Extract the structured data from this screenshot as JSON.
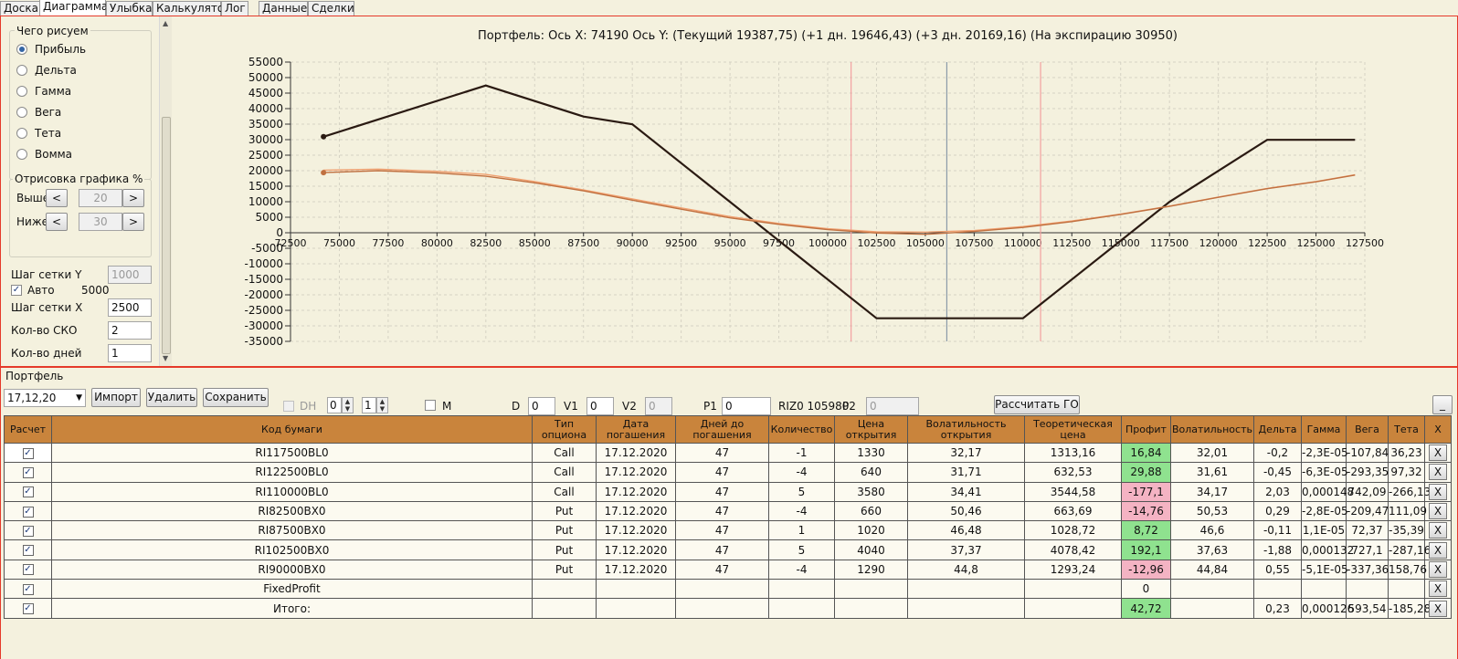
{
  "tabs": [
    "Доска",
    "Диаграмма",
    "Улыбка",
    "Калькулятор",
    "Лог",
    "Данные",
    "Сделки"
  ],
  "active_tab": "Диаграмма",
  "left": {
    "draw_group": "Чего рисуем",
    "radios": [
      "Прибыль",
      "Дельта",
      "Гамма",
      "Вега",
      "Тета",
      "Вомма"
    ],
    "selected_radio": "Прибыль",
    "render_group": "Отрисовка графика %",
    "above_label": "Выше",
    "above_value": "20",
    "below_label": "Ниже",
    "below_value": "30",
    "prev_glyph": "<",
    "next_glyph": ">",
    "grid_y_label": "Шаг сетки Y",
    "grid_y_value": "1000",
    "auto_label": "Авто",
    "auto_checked": true,
    "auto_value": "5000",
    "grid_x_label": "Шаг сетки X",
    "grid_x_value": "2500",
    "sko_label": "Кол-во СКО",
    "sko_value": "2",
    "days_label": "Кол-во дней",
    "days_value": "1"
  },
  "chart_data": {
    "type": "line",
    "title": "Портфель: Ось X: 74190 Ось Y:  (Текущий 19387,75)  (+1 дн. 19646,43)  (+3 дн. 20169,16)  (На экспирацию 30950)",
    "xlim": [
      72500,
      127500
    ],
    "ylim": [
      -35000,
      55000
    ],
    "x_ticks": [
      72500,
      75000,
      77500,
      80000,
      82500,
      85000,
      87500,
      90000,
      92500,
      95000,
      97500,
      100000,
      102500,
      105000,
      107500,
      110000,
      112500,
      115000,
      117500,
      120000,
      122500,
      125000,
      127500
    ],
    "y_ticks": [
      55000,
      50000,
      45000,
      40000,
      35000,
      30000,
      25000,
      20000,
      15000,
      10000,
      5000,
      0,
      -5000,
      -10000,
      -15000,
      -20000,
      -25000,
      -30000,
      -35000
    ],
    "grid": true,
    "vertical_markers": [
      {
        "x": 101200,
        "color": "#f3a0a0"
      },
      {
        "x": 106100,
        "color": "#8a9aa8"
      },
      {
        "x": 110900,
        "color": "#f3a0a0"
      }
    ],
    "series": [
      {
        "color": "#2a1a12",
        "x": [
          74190,
          82500,
          87500,
          90000,
          102500,
          110000,
          117500,
          122500,
          127000
        ],
        "y": [
          30950,
          47450,
          37450,
          34950,
          -27550,
          -27550,
          9950,
          29950,
          29950
        ]
      },
      {
        "color": "#f0a070",
        "x": [
          74190,
          77000,
          80000,
          82500,
          85000,
          87500,
          90000,
          92500,
          95000,
          97500,
          100000,
          102500,
          105000,
          107500,
          110000,
          112500,
          115000,
          117500,
          120000,
          122500,
          125000,
          127000
        ],
        "y": [
          20169,
          20500,
          19800,
          18800,
          16500,
          13800,
          10900,
          8000,
          5200,
          3000,
          1300,
          300,
          200,
          700,
          2000,
          3800,
          6000,
          8600,
          11500,
          14300,
          16500,
          18700
        ]
      },
      {
        "color": "#c07040",
        "x": [
          74190,
          77000,
          80000,
          82500,
          85000,
          87500,
          90000,
          92500,
          95000,
          97500,
          100000,
          102500,
          105000,
          107500,
          110000,
          112500,
          115000,
          117500,
          120000,
          122500,
          125000,
          127000
        ],
        "y": [
          19388,
          20000,
          19300,
          18200,
          16100,
          13500,
          10500,
          7600,
          4800,
          2700,
          1000,
          -100,
          -500,
          400,
          1700,
          3600,
          5900,
          8500,
          11400,
          14200,
          16400,
          18600
        ]
      }
    ],
    "highlight_points": [
      {
        "x": 74190,
        "y": 30950,
        "color": "#2a1a12"
      },
      {
        "x": 74190,
        "y": 19388,
        "color": "#c07040"
      }
    ]
  },
  "portfolio": {
    "title": "Портфель",
    "select_value": "17,12,20",
    "import_btn": "Импорт",
    "delete_btn": "Удалить",
    "save_btn": "Сохранить",
    "dh_label": "DH",
    "spin1_value": "0",
    "spin2_value": "1",
    "m_label": "M",
    "d_label": "D",
    "d_value": "0",
    "v1_label": "V1",
    "v1_value": "0",
    "v2_label": "V2",
    "v2_value": "0",
    "p1_label": "P1",
    "p1_value": "0",
    "riz_label": "RIZ0 105980",
    "p2_label": "P2",
    "p2_value": "0",
    "calc_btn": "Рассчитать ГО",
    "min_btn": "_"
  },
  "table": {
    "headers": [
      "Расчет",
      "Код бумаги",
      "Тип опциона",
      "Дата погашения",
      "Дней до погашения",
      "Количество",
      "Цена открытия",
      "Волатильность открытия",
      "Теоретическая цена",
      "Профит",
      "Волатильность",
      "Дельта",
      "Гамма",
      "Вега",
      "Тета",
      "X"
    ],
    "rows": [
      {
        "code": "RI117500BL0",
        "type": "Call",
        "date": "17.12.2020",
        "days": "47",
        "qty": "-1",
        "price": "1330",
        "vol_open": "32,17",
        "theo": "1313,16",
        "profit": "16,84",
        "profit_color": "green",
        "vol": "32,01",
        "delta": "-0,2",
        "gamma": "-2,3E-05",
        "vega": "-107,84",
        "theta": "36,23",
        "x": "X"
      },
      {
        "code": "RI122500BL0",
        "type": "Call",
        "date": "17.12.2020",
        "days": "47",
        "qty": "-4",
        "price": "640",
        "vol_open": "31,71",
        "theo": "632,53",
        "profit": "29,88",
        "profit_color": "green",
        "vol": "31,61",
        "delta": "-0,45",
        "gamma": "-6,3E-05",
        "vega": "-293,35",
        "theta": "97,32",
        "x": "X"
      },
      {
        "code": "RI110000BL0",
        "type": "Call",
        "date": "17.12.2020",
        "days": "47",
        "qty": "5",
        "price": "3580",
        "vol_open": "34,41",
        "theo": "3544,58",
        "profit": "-177,1",
        "profit_color": "pink",
        "vol": "34,17",
        "delta": "2,03",
        "gamma": "0,000148",
        "vega": "742,09",
        "theta": "-266,13",
        "x": "X"
      },
      {
        "code": "RI82500BX0",
        "type": "Put",
        "date": "17.12.2020",
        "days": "47",
        "qty": "-4",
        "price": "660",
        "vol_open": "50,46",
        "theo": "663,69",
        "profit": "-14,76",
        "profit_color": "pink",
        "vol": "50,53",
        "delta": "0,29",
        "gamma": "-2,8E-05",
        "vega": "-209,47",
        "theta": "111,09",
        "x": "X"
      },
      {
        "code": "RI87500BX0",
        "type": "Put",
        "date": "17.12.2020",
        "days": "47",
        "qty": "1",
        "price": "1020",
        "vol_open": "46,48",
        "theo": "1028,72",
        "profit": "8,72",
        "profit_color": "green",
        "vol": "46,6",
        "delta": "-0,11",
        "gamma": "1,1E-05",
        "vega": "72,37",
        "theta": "-35,39",
        "x": "X"
      },
      {
        "code": "RI102500BX0",
        "type": "Put",
        "date": "17.12.2020",
        "days": "47",
        "qty": "5",
        "price": "4040",
        "vol_open": "37,37",
        "theo": "4078,42",
        "profit": "192,1",
        "profit_color": "green",
        "vol": "37,63",
        "delta": "-1,88",
        "gamma": "0,000132",
        "vega": "727,1",
        "theta": "-287,16",
        "x": "X"
      },
      {
        "code": "RI90000BX0",
        "type": "Put",
        "date": "17.12.2020",
        "days": "47",
        "qty": "-4",
        "price": "1290",
        "vol_open": "44,8",
        "theo": "1293,24",
        "profit": "-12,96",
        "profit_color": "pink",
        "vol": "44,84",
        "delta": "0,55",
        "gamma": "-5,1E-05",
        "vega": "-337,36",
        "theta": "158,76",
        "x": "X"
      },
      {
        "code": "FixedProfit",
        "type": "",
        "date": "",
        "days": "",
        "qty": "",
        "price": "",
        "vol_open": "",
        "theo": "",
        "profit": "0",
        "profit_color": "",
        "vol": "",
        "delta": "",
        "gamma": "",
        "vega": "",
        "theta": "",
        "x": "X"
      },
      {
        "code": "Итого:",
        "type": "",
        "date": "",
        "days": "",
        "qty": "",
        "price": "",
        "vol_open": "",
        "theo": "",
        "profit": "42,72",
        "profit_color": "green",
        "vol": "",
        "delta": "0,23",
        "gamma": "0,000126",
        "vega": "593,54",
        "theta": "-185,28",
        "x": "X"
      }
    ]
  }
}
